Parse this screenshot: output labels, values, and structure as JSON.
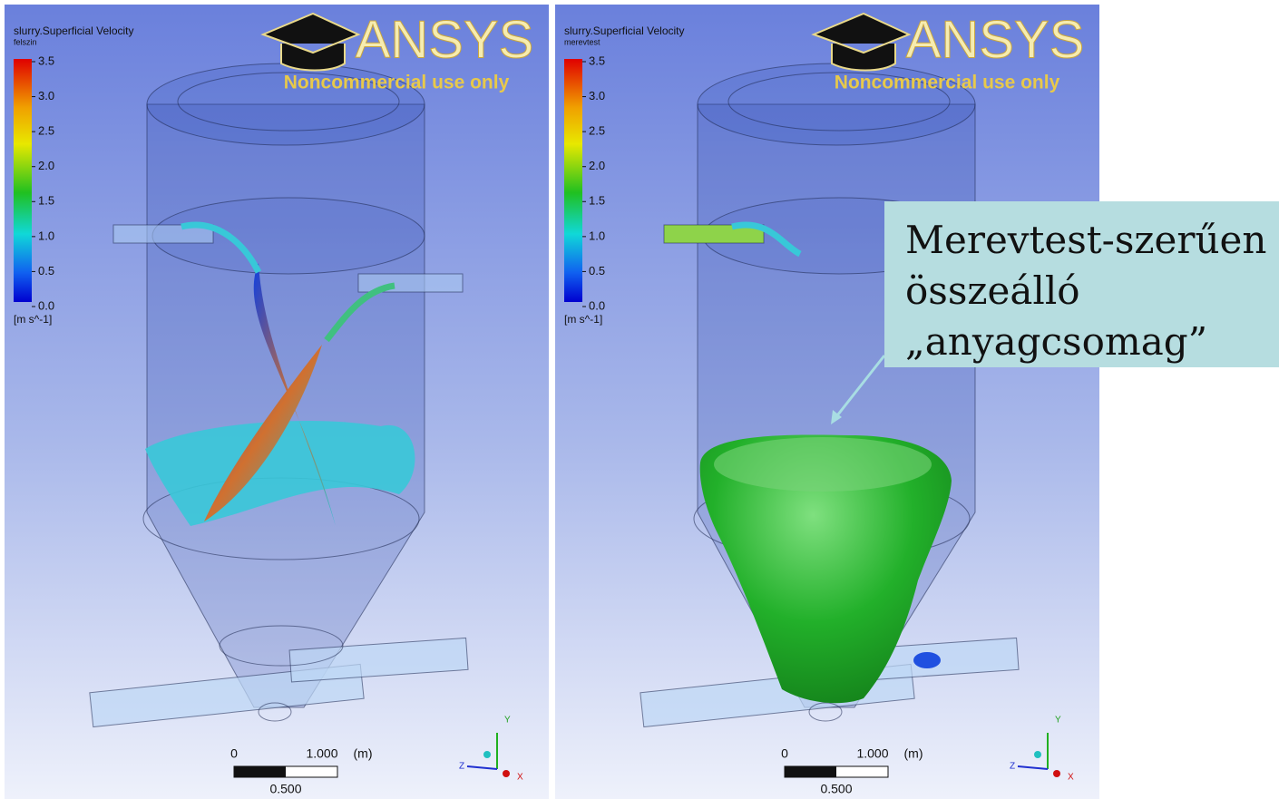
{
  "panels": [
    {
      "legend": {
        "title": "slurry.Superficial Velocity",
        "variable": "felszin",
        "ticks": [
          "3.5",
          "3.0",
          "2.5",
          "2.0",
          "1.5",
          "1.0",
          "0.5",
          "0.0"
        ],
        "unit": "[m s^-1]"
      },
      "logo": {
        "brand": "ANSYS",
        "notice": "Noncommercial use only"
      },
      "scale": {
        "start": "0",
        "end": "1.000",
        "unit": "(m)",
        "mid": "0.500"
      },
      "axes": {
        "y": "Y",
        "z": "Z",
        "x": "X"
      }
    },
    {
      "legend": {
        "title": "slurry.Superficial Velocity",
        "variable": "merevtest",
        "ticks": [
          "3.5",
          "3.0",
          "2.5",
          "2.0",
          "1.5",
          "1.0",
          "0.5",
          "0.0"
        ],
        "unit": "[m s^-1]"
      },
      "logo": {
        "brand": "ANSYS",
        "notice": "Noncommercial use only"
      },
      "scale": {
        "start": "0",
        "end": "1.000",
        "unit": "(m)",
        "mid": "0.500"
      },
      "axes": {
        "y": "Y",
        "z": "Z",
        "x": "X"
      }
    }
  ],
  "callout": {
    "lines": [
      "Merevtest-szerűen",
      "összeálló",
      "„anyagcsomag”"
    ]
  }
}
